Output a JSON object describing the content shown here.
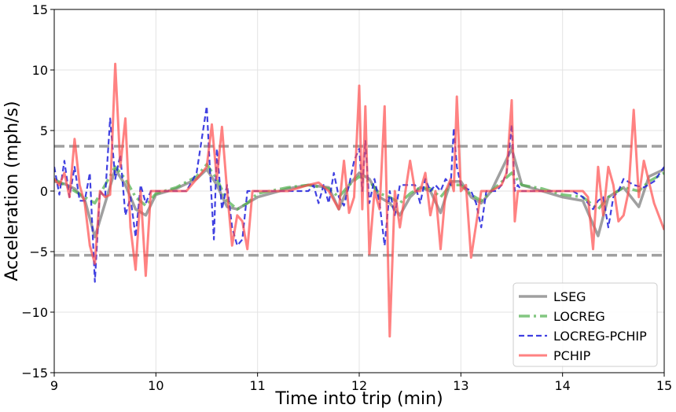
{
  "chart_data": {
    "type": "line",
    "title": "",
    "xlabel": "Time into trip (min)",
    "ylabel": "Acceleration (mph/s)",
    "xlim": [
      9,
      15
    ],
    "ylim": [
      -15,
      15
    ],
    "xticks": [
      9,
      10,
      11,
      12,
      13,
      14,
      15
    ],
    "yticks": [
      -15,
      -10,
      -5,
      0,
      5,
      10,
      15
    ],
    "ytick_labels": [
      "−15",
      "−10",
      "−5",
      "0",
      "5",
      "10",
      "15"
    ],
    "grid": true,
    "legend_position": "bottom-right",
    "reference_lines": [
      3.7,
      -5.3
    ],
    "series": [
      {
        "name": "LSEG",
        "color": "#808080",
        "style": "solid",
        "x": [
          9.0,
          9.1,
          9.2,
          9.3,
          9.4,
          9.5,
          9.6,
          9.7,
          9.8,
          9.9,
          10.0,
          10.2,
          10.4,
          10.5,
          10.6,
          10.7,
          10.8,
          10.9,
          11.0,
          11.3,
          11.5,
          11.7,
          11.8,
          11.9,
          12.0,
          12.1,
          12.2,
          12.3,
          12.4,
          12.5,
          12.6,
          12.7,
          12.8,
          12.9,
          13.0,
          13.1,
          13.2,
          13.3,
          13.5,
          13.6,
          13.8,
          14.0,
          14.2,
          14.35,
          14.45,
          14.6,
          14.75,
          14.85,
          15.0
        ],
        "values": [
          0.8,
          0.6,
          0.2,
          -0.7,
          -3.8,
          -1.0,
          1.8,
          0.5,
          -1.5,
          -2.0,
          -0.3,
          0.2,
          1.0,
          1.8,
          0.5,
          -1.3,
          -1.5,
          -1.0,
          -0.5,
          0.2,
          0.5,
          0.3,
          -1.5,
          0.5,
          1.5,
          1.0,
          -0.5,
          -1.0,
          -2.0,
          -0.5,
          0.3,
          0.0,
          -1.8,
          0.8,
          0.8,
          -0.5,
          -1.0,
          0.0,
          3.5,
          0.5,
          0.0,
          -0.5,
          -0.8,
          -3.7,
          -0.5,
          0.3,
          -1.3,
          1.2,
          1.8
        ]
      },
      {
        "name": "LOCREG",
        "color": "#4daf4a",
        "style": "dashdot",
        "x": [
          9.0,
          9.1,
          9.2,
          9.3,
          9.4,
          9.5,
          9.6,
          9.7,
          9.8,
          9.9,
          10.0,
          10.2,
          10.4,
          10.5,
          10.6,
          10.7,
          10.8,
          10.9,
          11.0,
          11.3,
          11.5,
          11.7,
          11.8,
          11.9,
          12.0,
          12.1,
          12.2,
          12.3,
          12.4,
          12.5,
          12.6,
          12.7,
          12.8,
          12.9,
          13.0,
          13.1,
          13.2,
          13.3,
          13.5,
          13.6,
          13.8,
          14.0,
          14.2,
          14.35,
          14.45,
          14.6,
          14.75,
          14.85,
          15.0
        ],
        "values": [
          1.0,
          0.5,
          0.0,
          -0.5,
          -1.0,
          0.5,
          2.0,
          1.0,
          -0.5,
          -1.2,
          -0.2,
          0.3,
          1.2,
          2.2,
          1.0,
          -0.8,
          -1.5,
          -1.0,
          -0.2,
          0.3,
          0.5,
          0.2,
          -0.5,
          0.5,
          1.2,
          0.8,
          -0.2,
          -0.5,
          -1.0,
          -0.2,
          0.3,
          0.2,
          -0.5,
          0.5,
          0.5,
          -0.3,
          -0.8,
          0.0,
          1.5,
          0.5,
          0.2,
          -0.3,
          -0.5,
          -1.5,
          -0.5,
          0.3,
          0.0,
          0.8,
          1.5
        ]
      },
      {
        "name": "LOCREG-PCHIP",
        "color": "#1f1fdc",
        "style": "dashed",
        "x": [
          9.0,
          9.05,
          9.1,
          9.15,
          9.2,
          9.25,
          9.3,
          9.35,
          9.4,
          9.45,
          9.5,
          9.55,
          9.6,
          9.65,
          9.7,
          9.75,
          9.8,
          9.85,
          9.9,
          9.95,
          10.0,
          10.3,
          10.4,
          10.5,
          10.53,
          10.57,
          10.6,
          10.65,
          10.7,
          10.75,
          10.8,
          10.85,
          10.9,
          10.95,
          11.0,
          11.4,
          11.5,
          11.55,
          11.6,
          11.65,
          11.7,
          11.75,
          11.8,
          11.85,
          11.9,
          11.95,
          12.0,
          12.03,
          12.06,
          12.1,
          12.15,
          12.2,
          12.25,
          12.3,
          12.35,
          12.4,
          12.5,
          12.55,
          12.6,
          12.65,
          12.7,
          12.75,
          12.8,
          12.85,
          12.9,
          12.93,
          12.96,
          13.0,
          13.1,
          13.15,
          13.2,
          13.25,
          13.3,
          13.35,
          13.4,
          13.45,
          13.5,
          13.53,
          13.56,
          13.6,
          13.7,
          13.8,
          13.9,
          14.0,
          14.1,
          14.2,
          14.25,
          14.3,
          14.35,
          14.4,
          14.45,
          14.5,
          14.55,
          14.6,
          14.7,
          14.8,
          14.9,
          15.0
        ],
        "values": [
          2.0,
          -0.3,
          2.5,
          -0.5,
          2.0,
          -0.8,
          -0.8,
          1.5,
          -7.5,
          0.0,
          -0.5,
          6.0,
          1.0,
          3.0,
          -2.0,
          -0.5,
          -3.8,
          0.5,
          -1.0,
          0.0,
          0.0,
          0.0,
          1.5,
          7.0,
          2.0,
          -4.0,
          3.5,
          -1.5,
          0.5,
          -3.0,
          -4.5,
          -4.0,
          0.0,
          0.0,
          0.0,
          0.0,
          0.0,
          0.5,
          -1.0,
          0.5,
          -1.0,
          1.5,
          -0.5,
          -1.2,
          0.5,
          2.5,
          3.5,
          0.0,
          4.2,
          -1.0,
          1.0,
          -1.0,
          -4.5,
          0.0,
          -2.0,
          0.5,
          0.5,
          0.5,
          -1.0,
          1.0,
          0.0,
          0.5,
          0.0,
          1.0,
          0.5,
          5.2,
          2.0,
          0.5,
          0.0,
          -1.0,
          -3.0,
          0.0,
          0.0,
          0.0,
          0.5,
          1.5,
          5.5,
          0.0,
          0.5,
          0.0,
          0.0,
          0.0,
          0.0,
          0.0,
          0.0,
          -0.5,
          -1.0,
          -1.5,
          -0.8,
          -0.5,
          -3.0,
          -0.5,
          0.0,
          1.0,
          0.5,
          0.3,
          0.8,
          2.0
        ]
      },
      {
        "name": "PCHIP",
        "color": "#ff4d4d",
        "style": "solid",
        "x": [
          9.0,
          9.05,
          9.1,
          9.15,
          9.2,
          9.25,
          9.3,
          9.35,
          9.4,
          9.45,
          9.5,
          9.55,
          9.6,
          9.65,
          9.7,
          9.75,
          9.8,
          9.85,
          9.9,
          9.95,
          10.0,
          10.3,
          10.4,
          10.5,
          10.55,
          10.6,
          10.65,
          10.7,
          10.75,
          10.8,
          10.85,
          10.9,
          10.95,
          11.0,
          11.3,
          11.5,
          11.6,
          11.7,
          11.8,
          11.85,
          11.9,
          11.95,
          12.0,
          12.03,
          12.06,
          12.1,
          12.15,
          12.2,
          12.25,
          12.3,
          12.35,
          12.4,
          12.5,
          12.55,
          12.6,
          12.65,
          12.7,
          12.75,
          12.8,
          12.85,
          12.9,
          12.93,
          12.96,
          13.0,
          13.05,
          13.1,
          13.2,
          13.3,
          13.4,
          13.45,
          13.5,
          13.53,
          13.56,
          13.6,
          13.7,
          13.8,
          13.9,
          14.0,
          14.1,
          14.2,
          14.25,
          14.3,
          14.35,
          14.4,
          14.45,
          14.5,
          14.55,
          14.6,
          14.65,
          14.7,
          14.75,
          14.8,
          14.9,
          15.0
        ],
        "values": [
          1.0,
          0.5,
          1.5,
          -0.5,
          4.3,
          0.5,
          -1.0,
          -4.5,
          -6.0,
          0.0,
          -0.5,
          -0.3,
          10.5,
          2.0,
          6.0,
          -3.0,
          -6.5,
          0.0,
          -7.0,
          0.0,
          0.0,
          0.0,
          1.0,
          2.0,
          5.5,
          1.0,
          5.3,
          0.0,
          -4.5,
          -2.0,
          -2.5,
          -4.8,
          0.0,
          0.0,
          0.0,
          0.5,
          0.7,
          0.0,
          -1.5,
          2.5,
          -1.8,
          -0.5,
          8.7,
          -1.5,
          7.0,
          -5.2,
          0.0,
          -1.5,
          7.0,
          -12.0,
          0.0,
          -3.0,
          2.5,
          0.0,
          0.0,
          1.5,
          -2.0,
          0.0,
          -4.8,
          0.0,
          1.0,
          0.0,
          7.8,
          0.0,
          0.5,
          -5.5,
          0.0,
          0.0,
          0.5,
          1.5,
          7.5,
          -2.5,
          0.0,
          0.0,
          0.0,
          0.0,
          0.0,
          0.0,
          0.0,
          0.0,
          -0.5,
          -4.8,
          2.0,
          -2.0,
          2.0,
          0.5,
          -2.5,
          -2.0,
          0.0,
          6.7,
          -0.5,
          2.5,
          -1.0,
          -3.2
        ]
      }
    ]
  }
}
